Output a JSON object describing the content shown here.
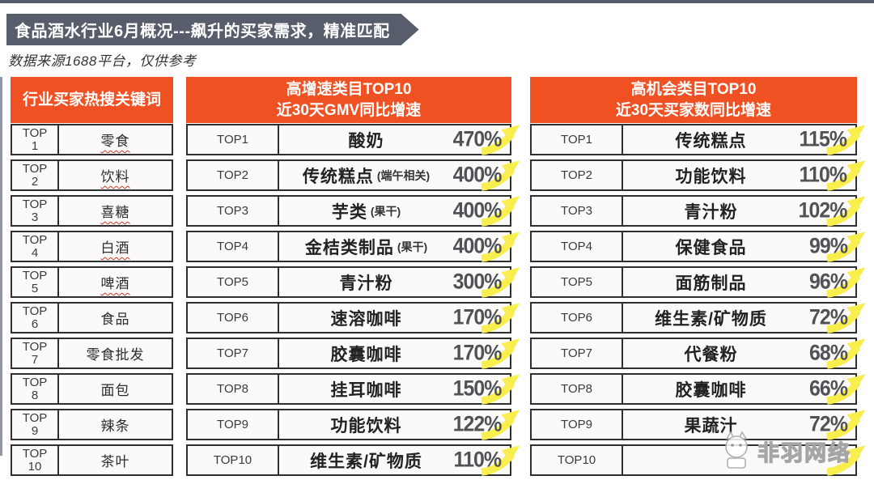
{
  "banner": {
    "title": "食品酒水行业6月概况---飙升的买家需求，精准匹配"
  },
  "subtitle": "数据来源1688平台，仅供参考",
  "colors": {
    "header_orange": "#ef5123",
    "banner_gray": "#575d6b",
    "percent_gray": "#515257",
    "arrow_yellow": "#f8ee4e",
    "underline_red": "#d23b2a",
    "border_dark": "#2f2f2f"
  },
  "tables": {
    "keywords": {
      "header": "行业买家热搜关键词",
      "rows": [
        {
          "rank": "TOP1",
          "keyword": "零食",
          "underline": true
        },
        {
          "rank": "TOP2",
          "keyword": "饮料",
          "underline": true
        },
        {
          "rank": "TOP3",
          "keyword": "喜糖",
          "underline": true
        },
        {
          "rank": "TOP4",
          "keyword": "白酒",
          "underline": true
        },
        {
          "rank": "TOP5",
          "keyword": "啤酒",
          "underline": true
        },
        {
          "rank": "TOP6",
          "keyword": "食品",
          "underline": false
        },
        {
          "rank": "TOP7",
          "keyword": "零食批发",
          "underline": false
        },
        {
          "rank": "TOP8",
          "keyword": "面包",
          "underline": false
        },
        {
          "rank": "TOP9",
          "keyword": "辣条",
          "underline": false
        },
        {
          "rank": "TOP10",
          "keyword": "茶叶",
          "underline": false
        }
      ]
    },
    "gmv_growth": {
      "header_line1": "高增速类目TOP10",
      "header_line2": "近30天GMV同比增速",
      "rows": [
        {
          "rank": "TOP1",
          "category": "酸奶",
          "note": "",
          "percent": "470%"
        },
        {
          "rank": "TOP2",
          "category": "传统糕点",
          "note": "(端午相关)",
          "percent": "400%"
        },
        {
          "rank": "TOP3",
          "category": "芋类",
          "note": "(果干)",
          "percent": "400%"
        },
        {
          "rank": "TOP4",
          "category": "金桔类制品",
          "note": "(果干)",
          "percent": "400%"
        },
        {
          "rank": "TOP5",
          "category": "青汁粉",
          "note": "",
          "percent": "300%"
        },
        {
          "rank": "TOP6",
          "category": "速溶咖啡",
          "note": "",
          "percent": "170%"
        },
        {
          "rank": "TOP7",
          "category": "胶囊咖啡",
          "note": "",
          "percent": "170%"
        },
        {
          "rank": "TOP8",
          "category": "挂耳咖啡",
          "note": "",
          "percent": "150%"
        },
        {
          "rank": "TOP9",
          "category": "功能饮料",
          "note": "",
          "percent": "122%"
        },
        {
          "rank": "TOP10",
          "category": "维生素/矿物质",
          "note": "",
          "percent": "110%"
        }
      ]
    },
    "buyer_growth": {
      "header_line1": "高机会类目TOP10",
      "header_line2": "近30天买家数同比增速",
      "rows": [
        {
          "rank": "TOP1",
          "category": "传统糕点",
          "note": "",
          "percent": "115%"
        },
        {
          "rank": "TOP2",
          "category": "功能饮料",
          "note": "",
          "percent": "110%"
        },
        {
          "rank": "TOP3",
          "category": "青汁粉",
          "note": "",
          "percent": "102%"
        },
        {
          "rank": "TOP4",
          "category": "保健食品",
          "note": "",
          "percent": "99%"
        },
        {
          "rank": "TOP5",
          "category": "面筋制品",
          "note": "",
          "percent": "96%"
        },
        {
          "rank": "TOP6",
          "category": "维生素/矿物质",
          "note": "",
          "percent": "72%"
        },
        {
          "rank": "TOP7",
          "category": "代餐粉",
          "note": "",
          "percent": "68%"
        },
        {
          "rank": "TOP8",
          "category": "胶囊咖啡",
          "note": "",
          "percent": "66%"
        },
        {
          "rank": "TOP9",
          "category": "果蔬汁",
          "note": "",
          "percent": "72%"
        },
        {
          "rank": "TOP10",
          "category": "",
          "note": "",
          "percent": ""
        }
      ]
    }
  },
  "watermark": {
    "text": "非羽网络"
  }
}
